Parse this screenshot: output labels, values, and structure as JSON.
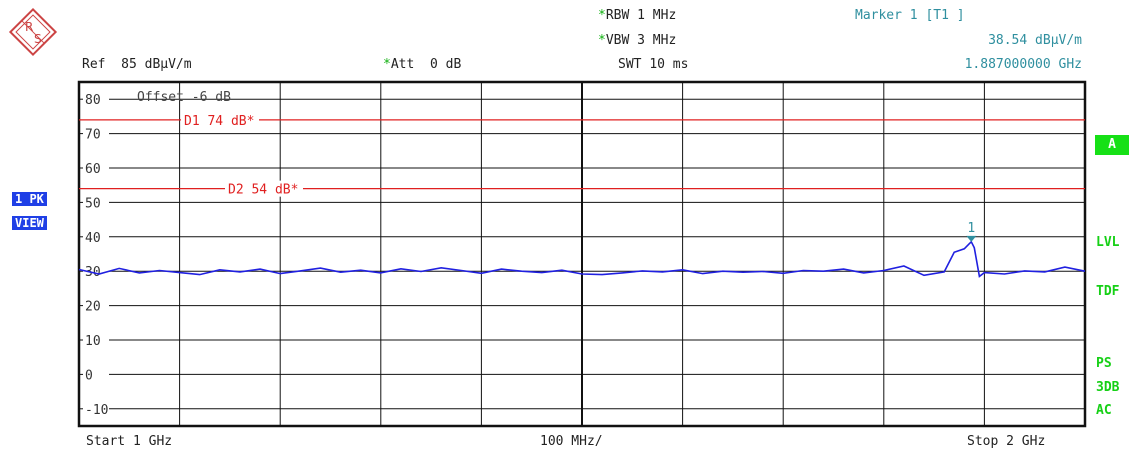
{
  "header": {
    "rbw_label": "RBW",
    "rbw_value": "1 MHz",
    "vbw_label": "VBW",
    "vbw_value": "3 MHz",
    "swt_label": "SWT",
    "swt_value": "10 ms",
    "ref_label": "Ref",
    "ref_value": "85 dBµV/m",
    "att_label": "Att",
    "att_value": "0 dB",
    "star": "*"
  },
  "marker": {
    "title": "Marker 1 [T1 ]",
    "level": "38.54 dBµV/m",
    "frequency": "1.887000000 GHz",
    "label": "1"
  },
  "left_badges": {
    "trace": "1 PK",
    "mode": "VIEW"
  },
  "right_labels": {
    "a": "A",
    "lvl": "LVL",
    "tdf": "TDF",
    "ps": "PS",
    "db3": "3DB",
    "ac": "AC"
  },
  "footer": {
    "start": "Start 1 GHz",
    "span": "100 MHz/",
    "stop": "Stop 2 GHz"
  },
  "colors": {
    "trace": "#2020e0",
    "display_line": "#e02020",
    "marker": "#2f8f9f",
    "grid": "#111111"
  },
  "chart_data": {
    "type": "line",
    "xlabel": "",
    "ylabel": "",
    "x_unit": "GHz",
    "xlim": [
      1.0,
      2.0
    ],
    "ylim": [
      -15,
      85
    ],
    "yticks": [
      80,
      70,
      60,
      50,
      40,
      30,
      20,
      10,
      0,
      -10
    ],
    "ytick_labels": [
      "80",
      "70",
      "60",
      "50",
      "40",
      "30",
      "20",
      "10",
      "0",
      "-10"
    ],
    "offset_text": "Offset -6 dB",
    "display_lines": [
      {
        "name": "D1",
        "text": "D1 74 dB*",
        "value": 74
      },
      {
        "name": "D2",
        "text": "D2 54 dB*",
        "value": 54
      }
    ],
    "marker_point": {
      "x": 1.887,
      "y": 38.54
    },
    "series": [
      {
        "x": [
          1.0,
          1.02,
          1.04,
          1.06,
          1.08,
          1.1,
          1.12,
          1.14,
          1.16,
          1.18,
          1.2,
          1.22,
          1.24,
          1.26,
          1.28,
          1.3,
          1.32,
          1.34,
          1.36,
          1.38,
          1.4,
          1.42,
          1.44,
          1.46,
          1.48,
          1.5,
          1.52,
          1.54,
          1.56,
          1.58,
          1.6,
          1.62,
          1.64,
          1.66,
          1.68,
          1.7,
          1.72,
          1.74,
          1.76,
          1.78,
          1.8,
          1.82,
          1.84,
          1.86,
          1.87,
          1.88,
          1.885,
          1.887,
          1.89,
          1.895,
          1.9,
          1.92,
          1.94,
          1.96,
          1.98,
          2.0
        ],
        "y": [
          30.5,
          29.2,
          30.8,
          29.5,
          30.2,
          29.6,
          29.0,
          30.4,
          29.8,
          30.6,
          29.3,
          30.1,
          30.9,
          29.7,
          30.3,
          29.5,
          30.7,
          29.9,
          31.0,
          30.2,
          29.4,
          30.6,
          30.0,
          29.6,
          30.3,
          29.2,
          29.0,
          29.5,
          30.1,
          29.8,
          30.4,
          29.3,
          30.0,
          29.7,
          29.9,
          29.4,
          30.2,
          30.0,
          30.6,
          29.5,
          30.2,
          31.5,
          28.8,
          29.8,
          35.5,
          36.5,
          38.0,
          38.54,
          36.8,
          28.5,
          29.6,
          29.2,
          30.1,
          29.8,
          31.2,
          30.0
        ]
      }
    ]
  }
}
